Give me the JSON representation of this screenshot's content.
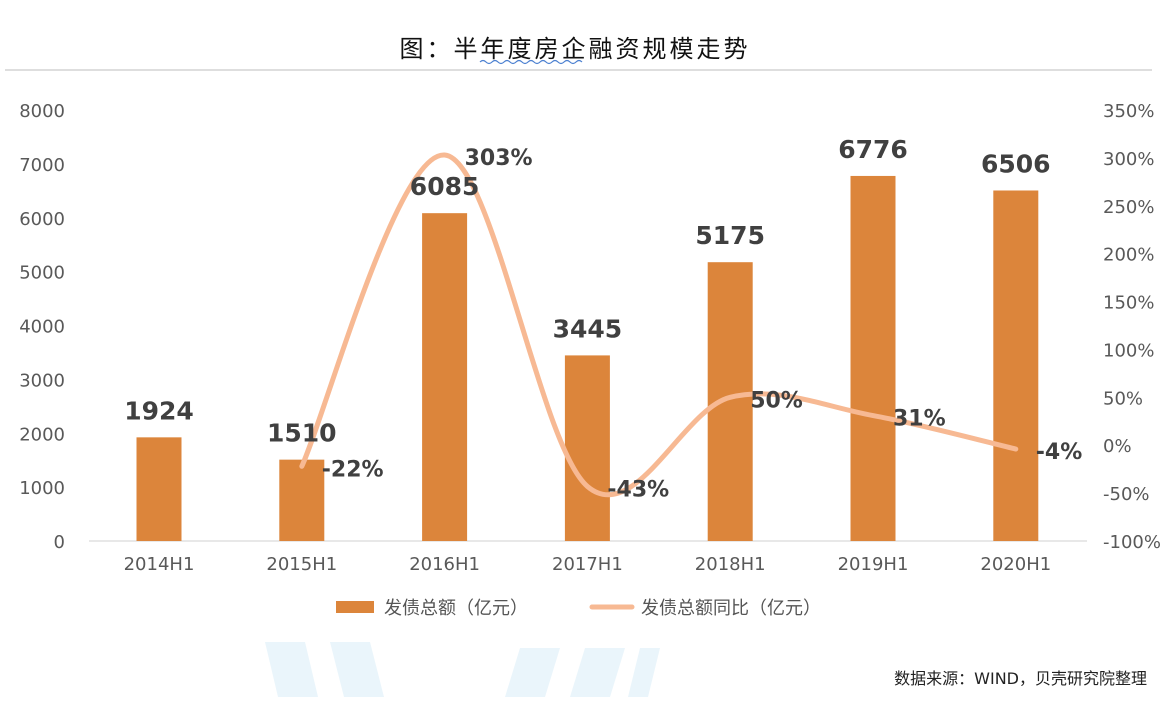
{
  "chart_data": {
    "type": "bar",
    "title": "图：半年度房企融资规模走势",
    "categories": [
      "2014H1",
      "2015H1",
      "2016H1",
      "2017H1",
      "2018H1",
      "2019H1",
      "2020H1"
    ],
    "series": [
      {
        "name": "发债总额（亿元）",
        "type": "bar",
        "axis": "left",
        "values": [
          1924,
          1510,
          6085,
          3445,
          5175,
          6776,
          6506
        ],
        "labels": [
          "1924",
          "1510",
          "6085",
          "3445",
          "5175",
          "6776",
          "6506"
        ],
        "color": "#DC853B"
      },
      {
        "name": "发债总额同比（亿元）",
        "type": "line",
        "axis": "right",
        "values": [
          null,
          -22,
          303,
          -43,
          50,
          31,
          -4
        ],
        "labels": [
          "",
          "-22%",
          "303%",
          "-43%",
          "50%",
          "31%",
          "-4%"
        ],
        "color": "#F7B993"
      }
    ],
    "y_left": {
      "min": 0,
      "max": 8000,
      "ticks": [
        "0",
        "1000",
        "2000",
        "3000",
        "4000",
        "5000",
        "6000",
        "7000",
        "8000"
      ]
    },
    "y_right": {
      "min": -100,
      "max": 350,
      "ticks": [
        "-100%",
        "-50%",
        "0%",
        "50%",
        "100%",
        "150%",
        "200%",
        "250%",
        "300%",
        "350%"
      ]
    },
    "legend": {
      "placement": "bottom"
    },
    "grid": false,
    "source": "数据来源：WIND，贝壳研究院整理"
  }
}
